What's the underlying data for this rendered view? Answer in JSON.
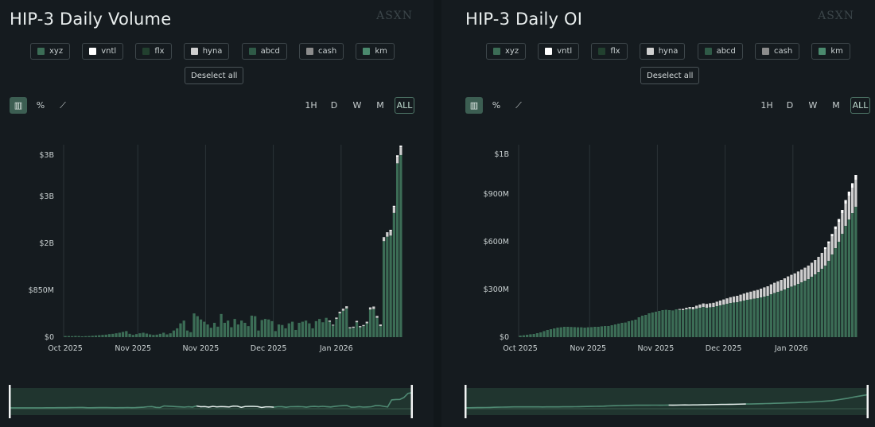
{
  "legend": [
    {
      "label": "xyz",
      "color": "#3c6d56"
    },
    {
      "label": "vntl",
      "color": "#ffffff"
    },
    {
      "label": "flx",
      "color": "#22402f"
    },
    {
      "label": "hyna",
      "color": "#cfcfcf"
    },
    {
      "label": "abcd",
      "color": "#2f5a47"
    },
    {
      "label": "cash",
      "color": "#8c8c8c"
    },
    {
      "label": "km",
      "color": "#4b8a6e"
    }
  ],
  "deselect_label": "Deselect all",
  "view_icons": [
    {
      "name": "bar-chart-icon",
      "glyph": "▥"
    },
    {
      "name": "percent-icon",
      "glyph": "%"
    },
    {
      "name": "line-chart-icon",
      "glyph": "⟋"
    }
  ],
  "ranges": [
    "1H",
    "D",
    "W",
    "M",
    "ALL"
  ],
  "active_range": "ALL",
  "watermark": "ASXN",
  "panels": [
    {
      "title": "HIP-3 Daily Volume",
      "chart_data": {
        "type": "bar",
        "stacked": true,
        "title": "HIP-3 Daily Volume",
        "y_tick_labels": [
          "$0",
          "$850M",
          "$2B",
          "$3B",
          "$3B"
        ],
        "y_tick_values": [
          0,
          850,
          1700,
          2550,
          3300
        ],
        "ylim": [
          0,
          3400
        ],
        "x_tick_labels": [
          "Oct 2025",
          "Nov 2025",
          "Nov 2025",
          "Dec 2025",
          "Jan 2026"
        ],
        "x_tick_positions": [
          0,
          20,
          40,
          60,
          80
        ],
        "series_names": [
          "xyz",
          "hyna",
          "vntl"
        ],
        "values_musd": [
          20,
          20,
          18,
          22,
          20,
          15,
          18,
          20,
          25,
          30,
          35,
          40,
          45,
          55,
          60,
          70,
          80,
          95,
          110,
          60,
          40,
          55,
          70,
          80,
          65,
          50,
          40,
          45,
          60,
          80,
          50,
          70,
          120,
          160,
          250,
          300,
          120,
          90,
          430,
          380,
          320,
          280,
          230,
          170,
          260,
          190,
          420,
          260,
          300,
          180,
          330,
          230,
          300,
          260,
          200,
          390,
          380,
          120,
          310,
          330,
          320,
          290,
          110,
          230,
          220,
          160,
          250,
          280,
          130,
          260,
          280,
          300,
          250,
          160,
          290,
          330,
          270,
          350,
          280,
          210,
          330,
          430,
          480,
          520,
          160,
          170,
          270,
          180,
          200,
          250,
          500,
          510,
          350,
          200,
          1740,
          1820,
          1840,
          2250,
          3150,
          3300
        ],
        "hyna_musd": [
          0,
          0,
          0,
          0,
          0,
          0,
          0,
          0,
          0,
          0,
          0,
          0,
          0,
          0,
          0,
          0,
          0,
          0,
          0,
          0,
          0,
          0,
          0,
          0,
          0,
          0,
          0,
          0,
          0,
          0,
          0,
          0,
          0,
          0,
          0,
          0,
          0,
          0,
          0,
          0,
          0,
          0,
          0,
          0,
          0,
          0,
          0,
          0,
          0,
          0,
          0,
          0,
          0,
          0,
          0,
          0,
          0,
          0,
          0,
          0,
          0,
          0,
          0,
          0,
          0,
          0,
          0,
          0,
          0,
          0,
          0,
          0,
          0,
          0,
          0,
          0,
          0,
          0,
          20,
          15,
          25,
          30,
          35,
          40,
          20,
          20,
          25,
          20,
          20,
          30,
          40,
          45,
          35,
          30,
          60,
          70,
          90,
          110,
          120,
          140
        ],
        "vntl_musd": [
          0,
          0,
          0,
          0,
          0,
          0,
          0,
          0,
          0,
          0,
          0,
          0,
          0,
          0,
          0,
          0,
          0,
          0,
          0,
          0,
          0,
          0,
          0,
          0,
          0,
          0,
          0,
          0,
          0,
          0,
          0,
          0,
          0,
          0,
          0,
          0,
          0,
          0,
          0,
          0,
          0,
          0,
          0,
          0,
          0,
          0,
          0,
          0,
          0,
          0,
          0,
          0,
          0,
          0,
          0,
          0,
          0,
          0,
          0,
          0,
          0,
          0,
          0,
          0,
          0,
          0,
          0,
          0,
          0,
          0,
          0,
          0,
          0,
          0,
          0,
          0,
          0,
          0,
          0,
          0,
          0,
          0,
          0,
          0,
          0,
          0,
          0,
          0,
          0,
          0,
          0,
          0,
          0,
          0,
          10,
          10,
          15,
          20,
          25,
          30
        ]
      }
    },
    {
      "title": "HIP-3 Daily OI",
      "chart_data": {
        "type": "bar",
        "stacked": true,
        "title": "HIP-3 Daily OI",
        "y_tick_labels": [
          "$0",
          "$300M",
          "$600M",
          "$900M",
          "$1B"
        ],
        "y_tick_values": [
          0,
          300,
          600,
          900,
          1150
        ],
        "ylim": [
          0,
          1180
        ],
        "x_tick_labels": [
          "Oct 2025",
          "Nov 2025",
          "Nov 2025",
          "Dec 2025",
          "Jan 2026"
        ],
        "x_tick_positions": [
          0,
          20,
          40,
          60,
          80
        ],
        "series_names": [
          "xyz",
          "hyna",
          "vntl"
        ],
        "values_musd": [
          10,
          12,
          15,
          18,
          20,
          25,
          30,
          38,
          45,
          50,
          55,
          60,
          62,
          65,
          65,
          64,
          63,
          62,
          62,
          60,
          62,
          63,
          65,
          65,
          68,
          70,
          70,
          75,
          80,
          85,
          90,
          92,
          100,
          105,
          110,
          125,
          135,
          140,
          150,
          155,
          160,
          165,
          170,
          172,
          170,
          168,
          175,
          172,
          170,
          175,
          178,
          175,
          180,
          185,
          190,
          185,
          188,
          190,
          195,
          200,
          205,
          210,
          215,
          218,
          220,
          225,
          230,
          235,
          238,
          242,
          245,
          250,
          255,
          260,
          270,
          278,
          285,
          292,
          300,
          310,
          318,
          325,
          335,
          345,
          355,
          365,
          380,
          395,
          410,
          430,
          450,
          480,
          520,
          560,
          600,
          650,
          700,
          740,
          780,
          820
        ],
        "hyna_musd": [
          0,
          0,
          0,
          0,
          0,
          0,
          0,
          0,
          0,
          0,
          0,
          0,
          0,
          0,
          0,
          0,
          0,
          0,
          0,
          0,
          0,
          0,
          0,
          0,
          0,
          0,
          0,
          0,
          0,
          0,
          0,
          0,
          0,
          0,
          0,
          0,
          0,
          0,
          0,
          0,
          0,
          0,
          0,
          0,
          0,
          0,
          0,
          5,
          8,
          10,
          12,
          15,
          18,
          20,
          22,
          24,
          25,
          26,
          28,
          30,
          32,
          34,
          36,
          38,
          40,
          42,
          44,
          46,
          48,
          50,
          52,
          55,
          58,
          60,
          62,
          64,
          66,
          68,
          70,
          72,
          74,
          76,
          78,
          80,
          82,
          85,
          88,
          90,
          95,
          100,
          105,
          110,
          115,
          120,
          125,
          130,
          140,
          150,
          160,
          170
        ],
        "vntl_musd": [
          0,
          0,
          0,
          0,
          0,
          0,
          0,
          0,
          0,
          0,
          0,
          0,
          0,
          0,
          0,
          0,
          0,
          0,
          0,
          0,
          0,
          0,
          0,
          0,
          0,
          0,
          0,
          0,
          0,
          0,
          0,
          0,
          0,
          0,
          0,
          0,
          0,
          0,
          0,
          0,
          0,
          0,
          0,
          0,
          0,
          0,
          0,
          0,
          0,
          0,
          0,
          0,
          0,
          0,
          0,
          0,
          0,
          0,
          0,
          0,
          0,
          0,
          0,
          0,
          0,
          0,
          0,
          0,
          0,
          0,
          0,
          0,
          0,
          0,
          0,
          0,
          0,
          0,
          0,
          0,
          0,
          0,
          0,
          0,
          0,
          0,
          0,
          0,
          0,
          0,
          10,
          12,
          14,
          16,
          18,
          20,
          22,
          25,
          28,
          30
        ]
      }
    }
  ],
  "colors": {
    "bar": "#3c6d56",
    "hyna": "#cfcfcf",
    "vntl": "#ffffff",
    "grid": "#2b3337",
    "axis_text": "#c9d0d1",
    "nav_line": "#4f8a73"
  }
}
